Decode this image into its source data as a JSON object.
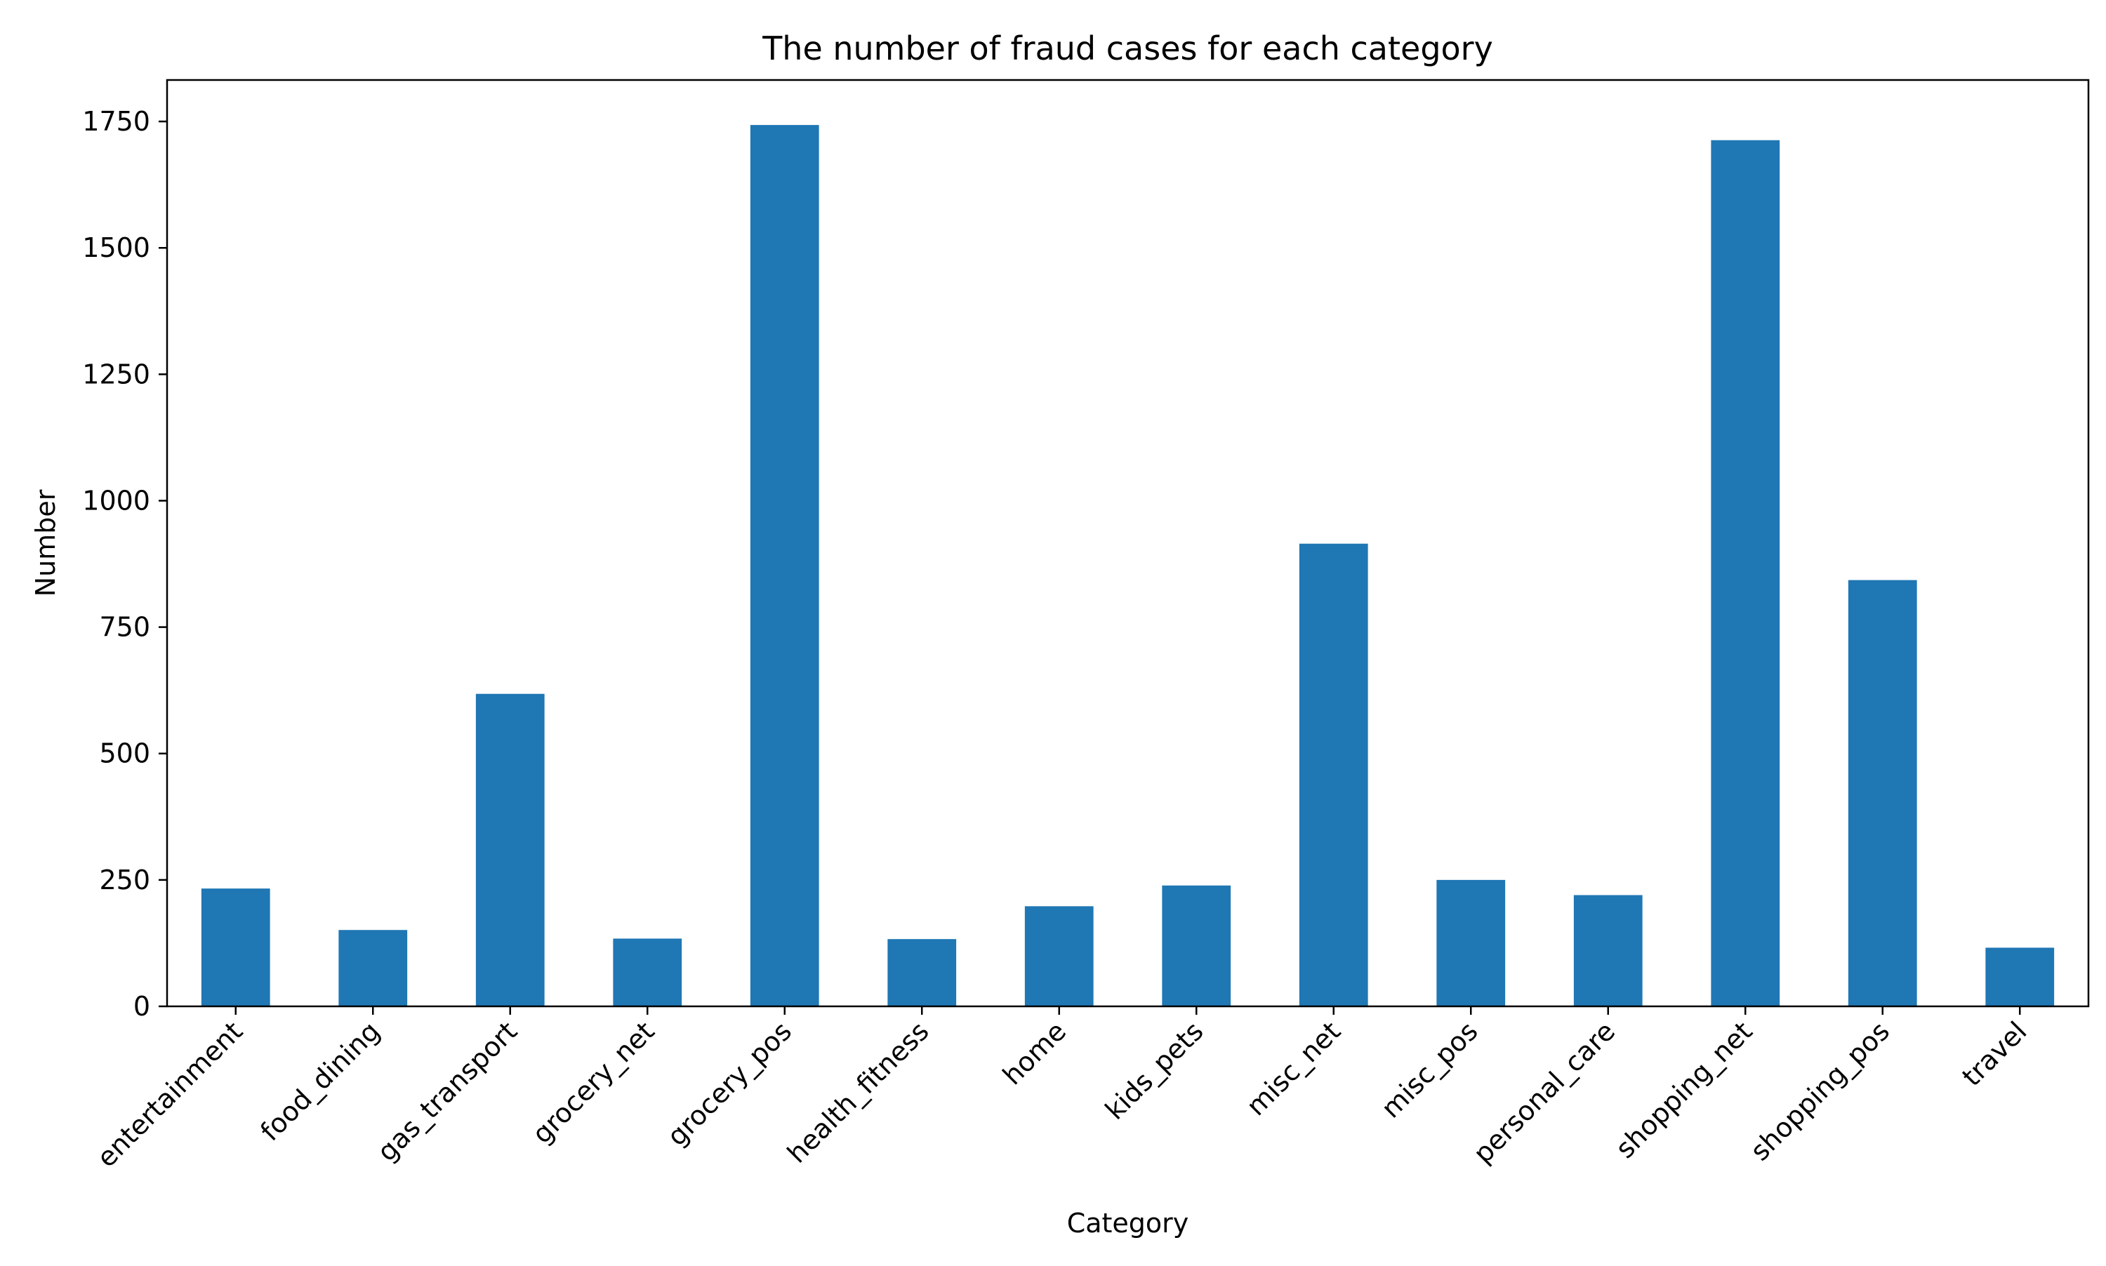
{
  "chart_data": {
    "type": "bar",
    "title": "The number of fraud cases for each category",
    "xlabel": "Category",
    "ylabel": "Number",
    "categories": [
      "entertainment",
      "food_dining",
      "gas_transport",
      "grocery_net",
      "grocery_pos",
      "health_fitness",
      "home",
      "kids_pets",
      "misc_net",
      "misc_pos",
      "personal_care",
      "shopping_net",
      "shopping_pos",
      "travel"
    ],
    "values": [
      233,
      151,
      618,
      134,
      1743,
      133,
      198,
      239,
      915,
      250,
      220,
      1713,
      843,
      116
    ],
    "ylim": [
      0,
      1832
    ],
    "yticks": [
      0,
      250,
      500,
      750,
      1000,
      1250,
      1500,
      1750
    ],
    "grid": false,
    "legend": "none",
    "colors": {
      "bar": "#1f77b4",
      "axis": "#000000",
      "background": "#ffffff"
    }
  }
}
